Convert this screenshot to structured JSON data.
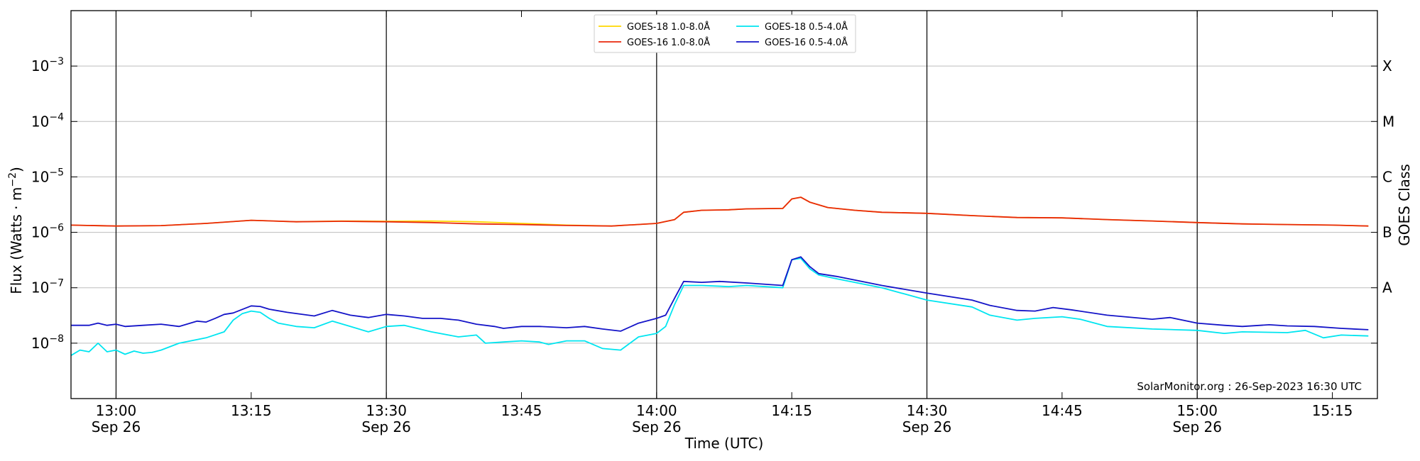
{
  "chart_data": {
    "type": "line",
    "title": "",
    "xlabel": "Time (UTC)",
    "ylabel": "Flux (Watts · m",
    "ylabel_superscript": "−2",
    "ylabel_suffix": ")",
    "y_scale": "log",
    "ylim": [
      1e-09,
      0.01
    ],
    "xlim": [
      "2023-09-26 12:55",
      "2023-09-26 15:20"
    ],
    "y_ticks": [
      {
        "value": 1e-08,
        "base": "10",
        "exp": "−8"
      },
      {
        "value": 1e-07,
        "base": "10",
        "exp": "−7"
      },
      {
        "value": 1e-06,
        "base": "10",
        "exp": "−6"
      },
      {
        "value": 1e-05,
        "base": "10",
        "exp": "−5"
      },
      {
        "value": 0.0001,
        "base": "10",
        "exp": "−4"
      },
      {
        "value": 0.001,
        "base": "10",
        "exp": "−3"
      }
    ],
    "x_ticks": [
      {
        "time": "2023-09-26 13:00",
        "label": "13:00",
        "sublabel": "Sep 26"
      },
      {
        "time": "2023-09-26 13:15",
        "label": "13:15",
        "sublabel": ""
      },
      {
        "time": "2023-09-26 13:30",
        "label": "13:30",
        "sublabel": "Sep 26"
      },
      {
        "time": "2023-09-26 13:45",
        "label": "13:45",
        "sublabel": ""
      },
      {
        "time": "2023-09-26 14:00",
        "label": "14:00",
        "sublabel": "Sep 26"
      },
      {
        "time": "2023-09-26 14:15",
        "label": "14:15",
        "sublabel": ""
      },
      {
        "time": "2023-09-26 14:30",
        "label": "14:30",
        "sublabel": "Sep 26"
      },
      {
        "time": "2023-09-26 14:45",
        "label": "14:45",
        "sublabel": ""
      },
      {
        "time": "2023-09-26 15:00",
        "label": "15:00",
        "sublabel": "Sep 26"
      },
      {
        "time": "2023-09-26 15:15",
        "label": "15:15",
        "sublabel": ""
      }
    ],
    "vertical_lines": [
      "2023-09-26 13:00",
      "2023-09-26 13:30",
      "2023-09-26 14:00",
      "2023-09-26 14:30",
      "2023-09-26 15:00"
    ],
    "grid": "horizontal lines at each decade",
    "secondary_axis": {
      "label": "GOES Class",
      "classes": [
        {
          "name": "A",
          "value": 1e-07
        },
        {
          "name": "B",
          "value": 1e-06
        },
        {
          "name": "C",
          "value": 1e-05
        },
        {
          "name": "M",
          "value": 0.0001
        },
        {
          "name": "X",
          "value": 0.001
        }
      ]
    },
    "legend": {
      "placement": "top-center",
      "columns": 2
    },
    "annotation": "SolarMonitor.org : 26-Sep-2023 16:30 UTC",
    "series": [
      {
        "name": "GOES-18 1.0-8.0Å",
        "color": "#ffd700",
        "points": [
          [
            "12:55",
            1.35e-06
          ],
          [
            "13:00",
            1.3e-06
          ],
          [
            "13:05",
            1.32e-06
          ],
          [
            "13:10",
            1.45e-06
          ],
          [
            "13:15",
            1.65e-06
          ],
          [
            "13:20",
            1.55e-06
          ],
          [
            "13:25",
            1.6e-06
          ],
          [
            "13:30",
            1.58e-06
          ],
          [
            "13:35",
            1.6e-06
          ],
          [
            "13:40",
            1.55e-06
          ],
          [
            "13:45",
            1.45e-06
          ],
          [
            "13:50",
            1.35e-06
          ],
          [
            "13:55",
            1.3e-06
          ],
          [
            "14:00",
            1.45e-06
          ],
          [
            "14:02",
            1.7e-06
          ],
          [
            "14:03",
            2.3e-06
          ],
          [
            "14:05",
            2.5e-06
          ],
          [
            "14:08",
            2.55e-06
          ],
          [
            "14:10",
            2.65e-06
          ],
          [
            "14:14",
            2.7e-06
          ],
          [
            "14:15",
            4e-06
          ],
          [
            "14:16",
            4.3e-06
          ],
          [
            "14:17",
            3.5e-06
          ],
          [
            "14:19",
            2.8e-06
          ],
          [
            "14:22",
            2.5e-06
          ],
          [
            "14:25",
            2.3e-06
          ],
          [
            "14:30",
            2.2e-06
          ],
          [
            "14:35",
            2e-06
          ],
          [
            "14:40",
            1.85e-06
          ],
          [
            "14:45",
            1.82e-06
          ],
          [
            "14:50",
            1.7e-06
          ],
          [
            "14:55",
            1.6e-06
          ],
          [
            "15:00",
            1.5e-06
          ],
          [
            "15:05",
            1.42e-06
          ],
          [
            "15:10",
            1.38e-06
          ],
          [
            "15:15",
            1.35e-06
          ],
          [
            "15:19",
            1.3e-06
          ]
        ]
      },
      {
        "name": "GOES-16 1.0-8.0Å",
        "color": "#e8290b",
        "points": [
          [
            "12:55",
            1.35e-06
          ],
          [
            "13:00",
            1.3e-06
          ],
          [
            "13:05",
            1.32e-06
          ],
          [
            "13:10",
            1.45e-06
          ],
          [
            "13:15",
            1.65e-06
          ],
          [
            "13:20",
            1.55e-06
          ],
          [
            "13:25",
            1.58e-06
          ],
          [
            "13:30",
            1.55e-06
          ],
          [
            "13:35",
            1.5e-06
          ],
          [
            "13:40",
            1.42e-06
          ],
          [
            "13:45",
            1.38e-06
          ],
          [
            "13:50",
            1.33e-06
          ],
          [
            "13:55",
            1.3e-06
          ],
          [
            "14:00",
            1.45e-06
          ],
          [
            "14:02",
            1.7e-06
          ],
          [
            "14:03",
            2.3e-06
          ],
          [
            "14:05",
            2.5e-06
          ],
          [
            "14:08",
            2.55e-06
          ],
          [
            "14:10",
            2.65e-06
          ],
          [
            "14:14",
            2.7e-06
          ],
          [
            "14:15",
            4e-06
          ],
          [
            "14:16",
            4.3e-06
          ],
          [
            "14:17",
            3.5e-06
          ],
          [
            "14:19",
            2.8e-06
          ],
          [
            "14:22",
            2.5e-06
          ],
          [
            "14:25",
            2.3e-06
          ],
          [
            "14:30",
            2.2e-06
          ],
          [
            "14:35",
            2e-06
          ],
          [
            "14:40",
            1.85e-06
          ],
          [
            "14:45",
            1.82e-06
          ],
          [
            "14:50",
            1.7e-06
          ],
          [
            "14:55",
            1.6e-06
          ],
          [
            "15:00",
            1.5e-06
          ],
          [
            "15:05",
            1.42e-06
          ],
          [
            "15:10",
            1.38e-06
          ],
          [
            "15:15",
            1.35e-06
          ],
          [
            "15:19",
            1.3e-06
          ]
        ]
      },
      {
        "name": "GOES-18 0.5-4.0Å",
        "color": "#00e5f0",
        "points": [
          [
            "12:55",
            6e-09
          ],
          [
            "12:56",
            7.5e-09
          ],
          [
            "12:57",
            7e-09
          ],
          [
            "12:58",
            1e-08
          ],
          [
            "12:59",
            7e-09
          ],
          [
            "13:00",
            7.5e-09
          ],
          [
            "13:01",
            6.3e-09
          ],
          [
            "13:02",
            7.2e-09
          ],
          [
            "13:03",
            6.6e-09
          ],
          [
            "13:04",
            6.8e-09
          ],
          [
            "13:05",
            7.5e-09
          ],
          [
            "13:07",
            1e-08
          ],
          [
            "13:10",
            1.25e-08
          ],
          [
            "13:12",
            1.6e-08
          ],
          [
            "13:13",
            2.6e-08
          ],
          [
            "13:14",
            3.4e-08
          ],
          [
            "13:15",
            3.8e-08
          ],
          [
            "13:16",
            3.6e-08
          ],
          [
            "13:17",
            2.8e-08
          ],
          [
            "13:18",
            2.3e-08
          ],
          [
            "13:20",
            2e-08
          ],
          [
            "13:22",
            1.9e-08
          ],
          [
            "13:24",
            2.5e-08
          ],
          [
            "13:26",
            2e-08
          ],
          [
            "13:28",
            1.6e-08
          ],
          [
            "13:30",
            2e-08
          ],
          [
            "13:32",
            2.1e-08
          ],
          [
            "13:35",
            1.6e-08
          ],
          [
            "13:38",
            1.3e-08
          ],
          [
            "13:40",
            1.4e-08
          ],
          [
            "13:41",
            1e-08
          ],
          [
            "13:43",
            1.05e-08
          ],
          [
            "13:45",
            1.1e-08
          ],
          [
            "13:47",
            1.05e-08
          ],
          [
            "13:48",
            9.5e-09
          ],
          [
            "13:50",
            1.1e-08
          ],
          [
            "13:52",
            1.1e-08
          ],
          [
            "13:54",
            8e-09
          ],
          [
            "13:56",
            7.5e-09
          ],
          [
            "13:58",
            1.3e-08
          ],
          [
            "14:00",
            1.5e-08
          ],
          [
            "14:01",
            2e-08
          ],
          [
            "14:02",
            5e-08
          ],
          [
            "14:03",
            1.1e-07
          ],
          [
            "14:05",
            1.1e-07
          ],
          [
            "14:08",
            1.05e-07
          ],
          [
            "14:10",
            1.1e-07
          ],
          [
            "14:14",
            1e-07
          ],
          [
            "14:15",
            3.2e-07
          ],
          [
            "14:16",
            3.4e-07
          ],
          [
            "14:17",
            2.2e-07
          ],
          [
            "14:18",
            1.7e-07
          ],
          [
            "14:20",
            1.45e-07
          ],
          [
            "14:25",
            1e-07
          ],
          [
            "14:30",
            6e-08
          ],
          [
            "14:35",
            4.5e-08
          ],
          [
            "14:37",
            3.2e-08
          ],
          [
            "14:40",
            2.6e-08
          ],
          [
            "14:42",
            2.8e-08
          ],
          [
            "14:45",
            3e-08
          ],
          [
            "14:47",
            2.7e-08
          ],
          [
            "14:50",
            2e-08
          ],
          [
            "14:55",
            1.8e-08
          ],
          [
            "15:00",
            1.7e-08
          ],
          [
            "15:03",
            1.5e-08
          ],
          [
            "15:05",
            1.6e-08
          ],
          [
            "15:10",
            1.55e-08
          ],
          [
            "15:12",
            1.7e-08
          ],
          [
            "15:14",
            1.25e-08
          ],
          [
            "15:16",
            1.4e-08
          ],
          [
            "15:19",
            1.35e-08
          ]
        ]
      },
      {
        "name": "GOES-16 0.5-4.0Å",
        "color": "#1414c8",
        "points": [
          [
            "12:55",
            2.1e-08
          ],
          [
            "12:57",
            2.1e-08
          ],
          [
            "12:58",
            2.3e-08
          ],
          [
            "12:59",
            2.1e-08
          ],
          [
            "13:00",
            2.2e-08
          ],
          [
            "13:01",
            2e-08
          ],
          [
            "13:03",
            2.1e-08
          ],
          [
            "13:05",
            2.2e-08
          ],
          [
            "13:07",
            2e-08
          ],
          [
            "13:09",
            2.5e-08
          ],
          [
            "13:10",
            2.4e-08
          ],
          [
            "13:11",
            2.8e-08
          ],
          [
            "13:12",
            3.3e-08
          ],
          [
            "13:13",
            3.5e-08
          ],
          [
            "13:15",
            4.7e-08
          ],
          [
            "13:16",
            4.6e-08
          ],
          [
            "13:17",
            4.1e-08
          ],
          [
            "13:19",
            3.6e-08
          ],
          [
            "13:22",
            3.1e-08
          ],
          [
            "13:24",
            3.9e-08
          ],
          [
            "13:26",
            3.2e-08
          ],
          [
            "13:28",
            2.9e-08
          ],
          [
            "13:30",
            3.3e-08
          ],
          [
            "13:32",
            3.1e-08
          ],
          [
            "13:34",
            2.8e-08
          ],
          [
            "13:36",
            2.8e-08
          ],
          [
            "13:38",
            2.6e-08
          ],
          [
            "13:40",
            2.2e-08
          ],
          [
            "13:42",
            2e-08
          ],
          [
            "13:43",
            1.85e-08
          ],
          [
            "13:45",
            2e-08
          ],
          [
            "13:47",
            2e-08
          ],
          [
            "13:50",
            1.9e-08
          ],
          [
            "13:52",
            2e-08
          ],
          [
            "13:54",
            1.8e-08
          ],
          [
            "13:56",
            1.65e-08
          ],
          [
            "13:58",
            2.3e-08
          ],
          [
            "14:00",
            2.8e-08
          ],
          [
            "14:01",
            3.2e-08
          ],
          [
            "14:02",
            6.5e-08
          ],
          [
            "14:03",
            1.3e-07
          ],
          [
            "14:05",
            1.25e-07
          ],
          [
            "14:07",
            1.3e-07
          ],
          [
            "14:10",
            1.22e-07
          ],
          [
            "14:14",
            1.1e-07
          ],
          [
            "14:15",
            3.2e-07
          ],
          [
            "14:16",
            3.6e-07
          ],
          [
            "14:17",
            2.4e-07
          ],
          [
            "14:18",
            1.8e-07
          ],
          [
            "14:20",
            1.6e-07
          ],
          [
            "14:25",
            1.1e-07
          ],
          [
            "14:30",
            8e-08
          ],
          [
            "14:35",
            6e-08
          ],
          [
            "14:37",
            4.8e-08
          ],
          [
            "14:40",
            3.9e-08
          ],
          [
            "14:42",
            3.8e-08
          ],
          [
            "14:44",
            4.4e-08
          ],
          [
            "14:46",
            4e-08
          ],
          [
            "14:50",
            3.2e-08
          ],
          [
            "14:55",
            2.7e-08
          ],
          [
            "14:57",
            2.9e-08
          ],
          [
            "15:00",
            2.3e-08
          ],
          [
            "15:03",
            2.1e-08
          ],
          [
            "15:05",
            2e-08
          ],
          [
            "15:08",
            2.15e-08
          ],
          [
            "15:10",
            2.05e-08
          ],
          [
            "15:13",
            2e-08
          ],
          [
            "15:16",
            1.85e-08
          ],
          [
            "15:19",
            1.75e-08
          ]
        ]
      }
    ]
  }
}
